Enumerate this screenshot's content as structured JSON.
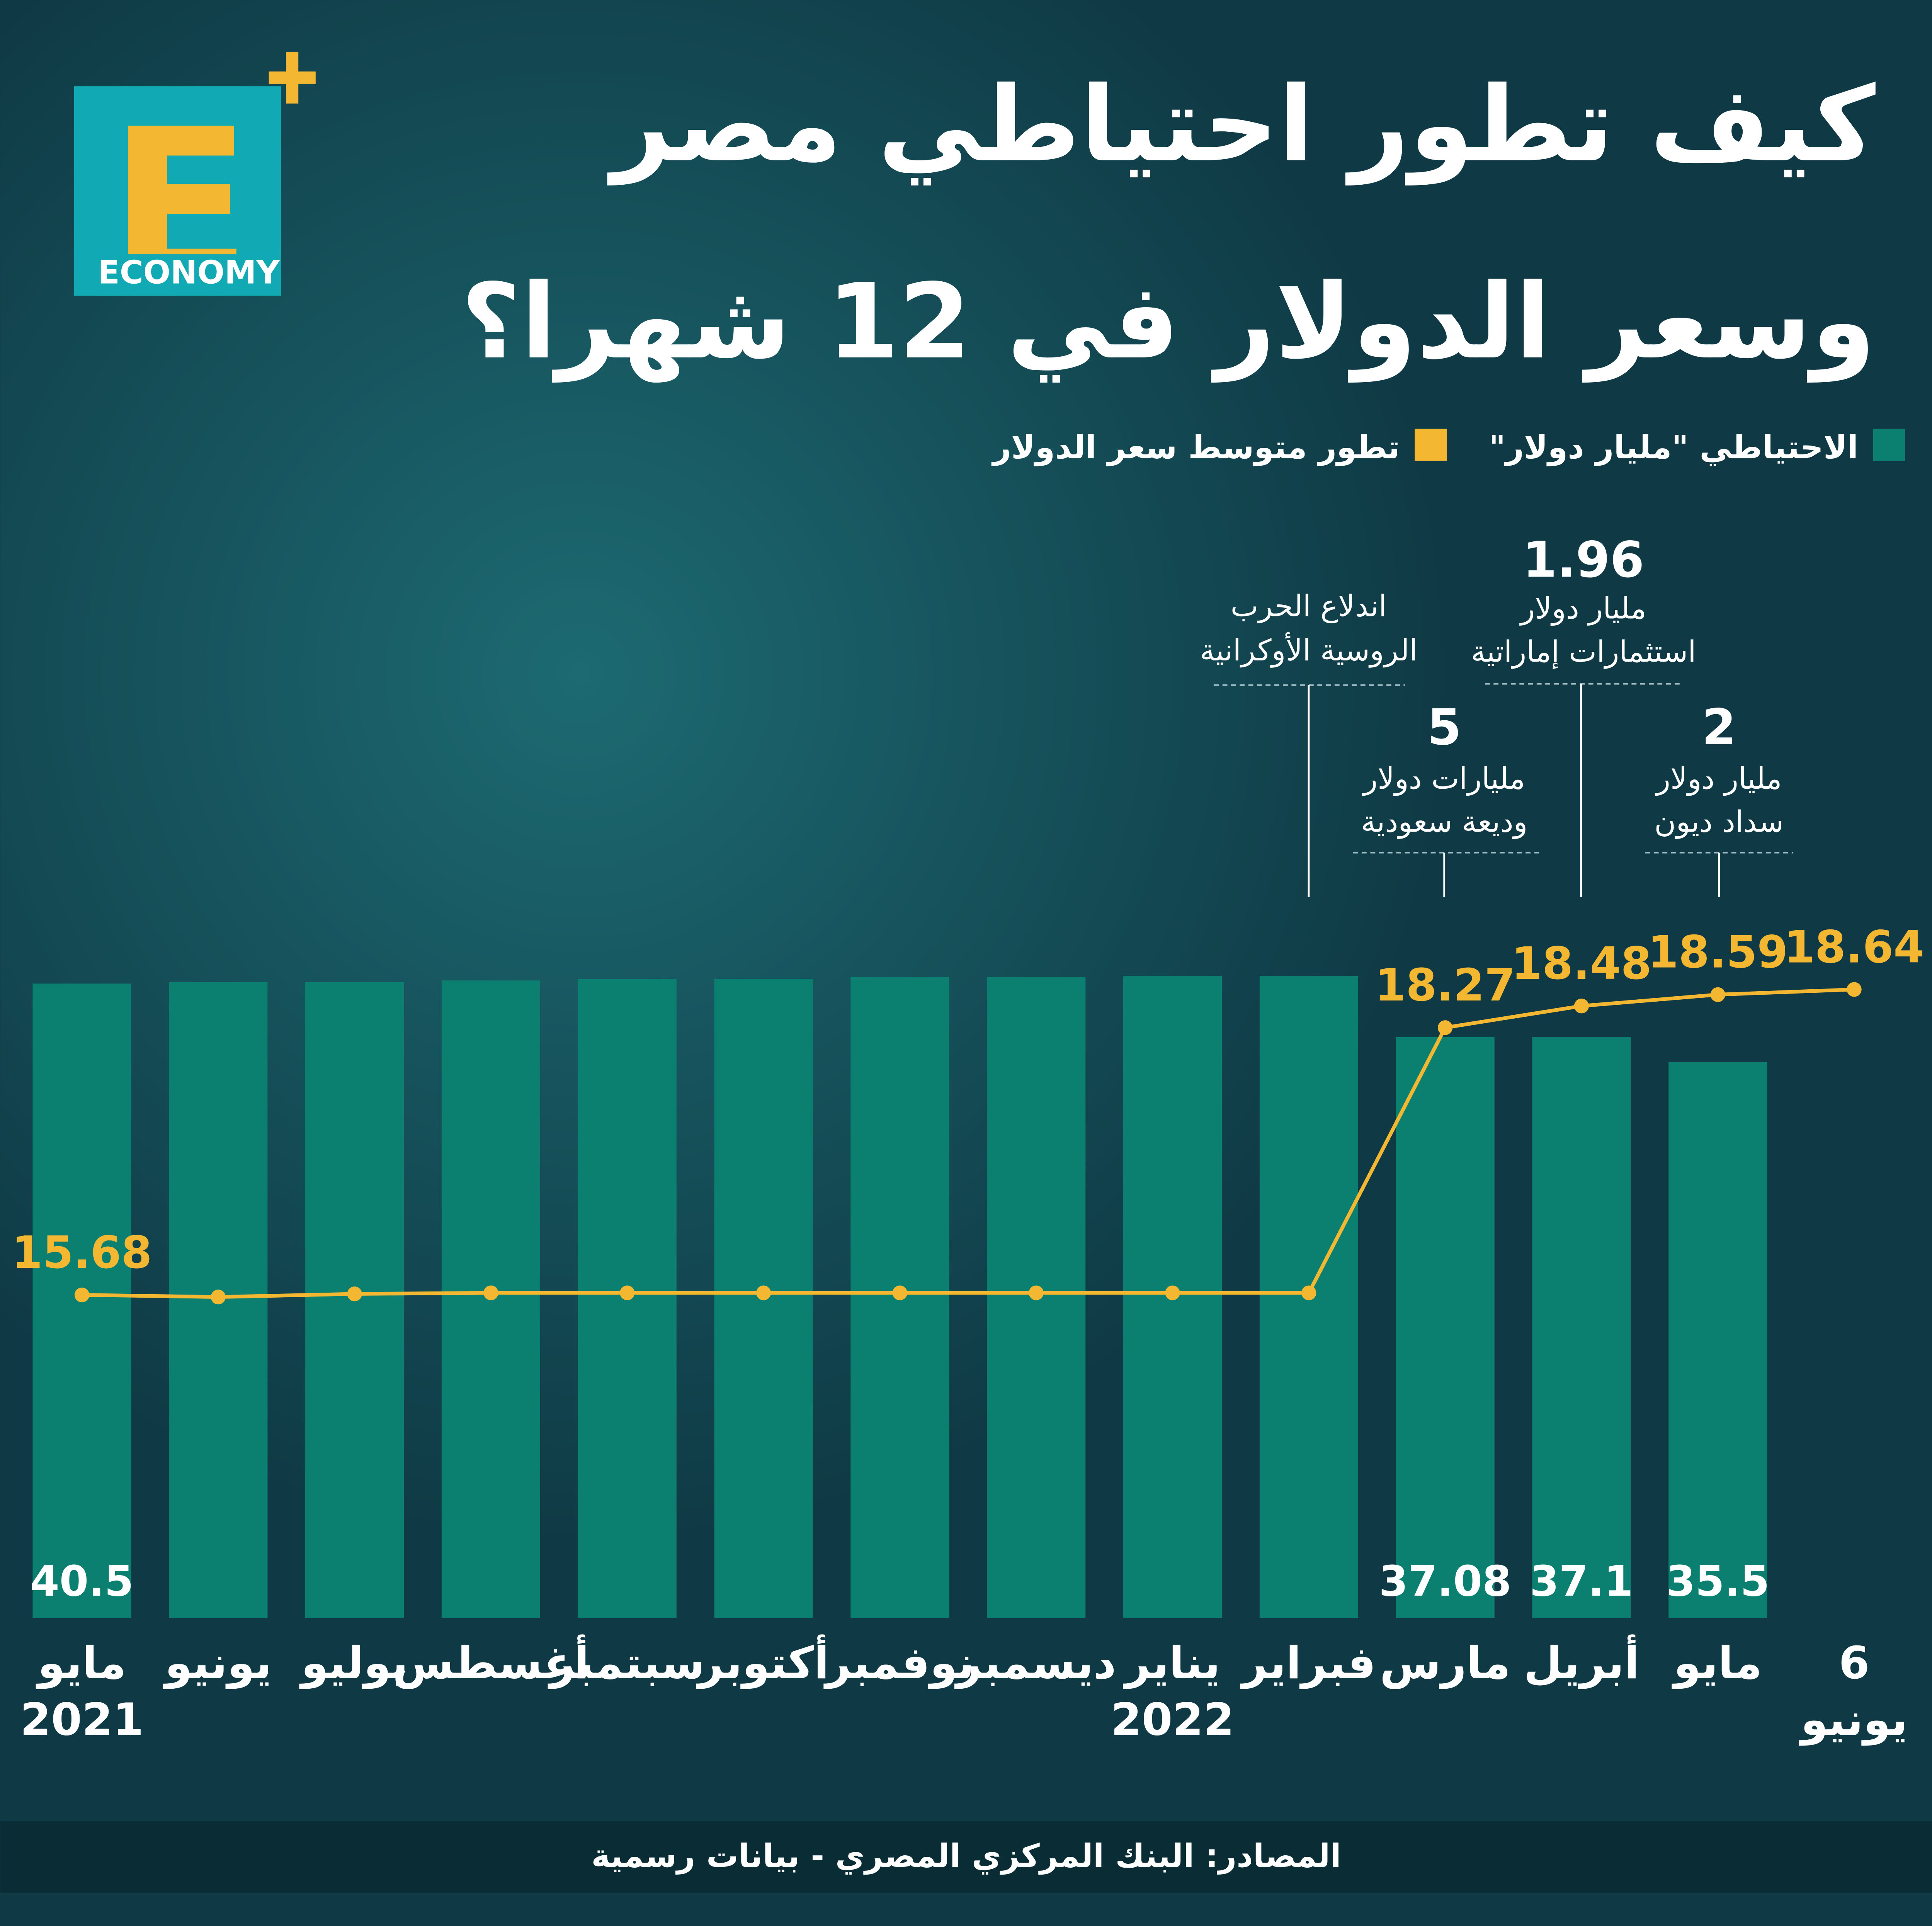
{
  "logo": {
    "letter": "E",
    "text": "ECONOMY"
  },
  "chart_data": {
    "type": "bar-line",
    "title": [
      "كيف تطور احتياطي مصر",
      "وسعر الدولار في 12 شهرا؟"
    ],
    "categories": [
      [
        "مايو",
        "2021"
      ],
      [
        "يونيو"
      ],
      [
        "يوليو"
      ],
      [
        "أغسطس"
      ],
      [
        "سبتمبر"
      ],
      [
        "أكتوبر"
      ],
      [
        "نوفمبر"
      ],
      [
        "ديسمبر"
      ],
      [
        "يناير",
        "2022"
      ],
      [
        "فبراير"
      ],
      [
        "مارس"
      ],
      [
        "أبريل"
      ],
      [
        "مايو"
      ],
      [
        "6",
        "يونيو"
      ]
    ],
    "series": [
      {
        "name": "الاحتياطي \"مليار دولار\"",
        "color": "#0b8070",
        "type": "bar",
        "values": [
          40.5,
          40.6,
          40.6,
          40.7,
          40.8,
          40.8,
          40.9,
          40.9,
          41,
          41,
          37.08,
          37.1,
          35.5,
          null
        ],
        "value_labels": [
          "40.5",
          null,
          null,
          null,
          null,
          null,
          null,
          null,
          null,
          null,
          "37.08",
          "37.1",
          "35.5",
          null
        ]
      },
      {
        "name": "تطور متوسط سعر الدولار",
        "color": "#f4b731",
        "type": "line",
        "axis": "y2",
        "values": [
          15.68,
          15.66,
          15.69,
          15.7,
          15.7,
          15.7,
          15.7,
          15.7,
          15.7,
          15.7,
          18.27,
          18.48,
          18.59,
          18.64
        ],
        "value_labels": [
          "15.68",
          null,
          null,
          null,
          null,
          null,
          null,
          null,
          null,
          null,
          "18.27",
          "18.48",
          "18.59",
          "18.64"
        ]
      }
    ],
    "ylim": [
      0,
      45
    ],
    "y2lim": [
      12.55,
      19.38
    ],
    "annotations": [
      {
        "lines": [
          "اندلاع الحرب",
          "الروسية الأوكرانية"
        ]
      },
      {
        "amount": 5,
        "lines": [
          "مليارات دولار",
          "وديعة سعودية"
        ]
      },
      {
        "amount": 1.96,
        "lines": [
          "مليار دولار",
          "استثمارات إماراتية"
        ]
      },
      {
        "amount": 2,
        "lines": [
          "مليار دولار",
          "سداد ديون"
        ]
      }
    ],
    "source": "المصادر: البنك المركزي المصري - بيانات رسمية"
  }
}
